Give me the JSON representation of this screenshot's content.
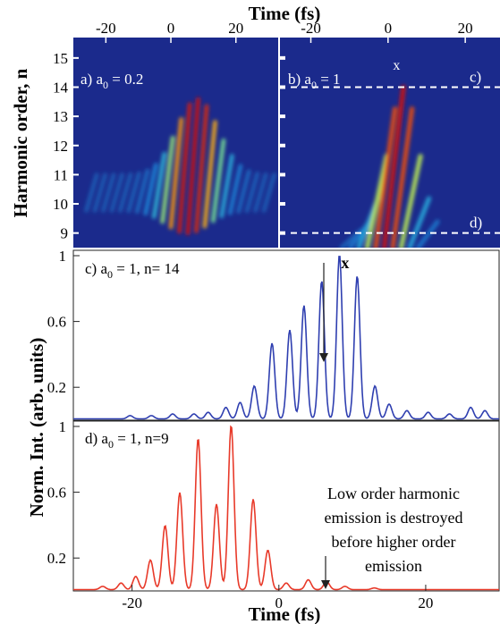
{
  "figure": {
    "top_axis_label": "Time (fs)",
    "bottom_axis_label": "Time (fs)",
    "left_top_label": "Harmonic order, n",
    "left_bottom_label": "Norm. Int. (arb. units)"
  },
  "colors": {
    "blue_curve": "#2f3fb0",
    "red_curve": "#e83a2a",
    "heatmap_bg": "#1b2a8c",
    "dashed": "#ffffff"
  },
  "chart_data": [
    {
      "type": "heatmap",
      "panel_label": "a) a₀ = 0.2",
      "label_prefix": "a) a",
      "label_sub": "0",
      "label_suffix": " = 0.2",
      "xlabel": "Time (fs)",
      "ylabel": "Harmonic order, n",
      "xlim": [
        -30,
        33
      ],
      "ylim": [
        8.5,
        15.7
      ],
      "x_ticks": [
        -20,
        0,
        20
      ],
      "y_ticks": [
        9,
        10,
        11,
        12,
        13,
        14,
        15
      ]
    },
    {
      "type": "heatmap",
      "panel_label": "b) a₀ = 1",
      "label_prefix": "b) a",
      "label_sub": "0",
      "label_suffix": " = 1",
      "xlim": [
        -28,
        29
      ],
      "ylim": [
        8.5,
        15.7
      ],
      "x_ticks": [
        -20,
        0,
        20
      ],
      "annotations": {
        "x_mark": "x",
        "line_c": "c)",
        "line_d": "d)"
      },
      "dashed_lines_n": [
        14,
        9
      ]
    },
    {
      "type": "line",
      "panel_label": "c) a₀ = 1, n= 14",
      "label_prefix": "c) a",
      "label_sub": "0",
      "label_suffix": " = 1, n= 14",
      "xlim": [
        -30,
        30
      ],
      "ylim": [
        0,
        1
      ],
      "y_ticks": [
        "0.2",
        "0.6",
        "1"
      ],
      "annotation": "x",
      "peaks": [
        {
          "x": -22,
          "y": 0.02
        },
        {
          "x": -19,
          "y": 0.02
        },
        {
          "x": -16,
          "y": 0.03
        },
        {
          "x": -13,
          "y": 0.03
        },
        {
          "x": -11,
          "y": 0.04
        },
        {
          "x": -8.5,
          "y": 0.07
        },
        {
          "x": -6.5,
          "y": 0.1
        },
        {
          "x": -4.5,
          "y": 0.2
        },
        {
          "x": -2,
          "y": 0.46
        },
        {
          "x": 0.5,
          "y": 0.54
        },
        {
          "x": 2.5,
          "y": 0.69
        },
        {
          "x": 5,
          "y": 0.84
        },
        {
          "x": 7.5,
          "y": 1.0
        },
        {
          "x": 10,
          "y": 0.87
        },
        {
          "x": 12.5,
          "y": 0.2
        },
        {
          "x": 14.5,
          "y": 0.09
        },
        {
          "x": 17,
          "y": 0.05
        },
        {
          "x": 20,
          "y": 0.04
        },
        {
          "x": 23,
          "y": 0.03
        },
        {
          "x": 26,
          "y": 0.07
        },
        {
          "x": 28,
          "y": 0.05
        }
      ]
    },
    {
      "type": "line",
      "panel_label": "d) a₀ = 1, n=9",
      "label_prefix": "d) a",
      "label_sub": "0",
      "label_suffix": " = 1, n=9",
      "xlim": [
        -28,
        30
      ],
      "ylim": [
        0,
        1
      ],
      "x_ticks": [
        -20,
        0,
        20
      ],
      "y_ticks": [
        "0.2",
        "0.6",
        "1"
      ],
      "xlabel": "Time (fs)",
      "annotation_lines": [
        "Low order harmonic",
        "emission is destroyed",
        "before higher order",
        "emission"
      ],
      "peaks": [
        {
          "x": -24,
          "y": 0.02
        },
        {
          "x": -21.5,
          "y": 0.04
        },
        {
          "x": -19.5,
          "y": 0.08
        },
        {
          "x": -17.5,
          "y": 0.18
        },
        {
          "x": -15.5,
          "y": 0.39
        },
        {
          "x": -13.5,
          "y": 0.59
        },
        {
          "x": -11,
          "y": 0.92
        },
        {
          "x": -8.5,
          "y": 0.52
        },
        {
          "x": -6.5,
          "y": 1.0
        },
        {
          "x": -3.5,
          "y": 0.55
        },
        {
          "x": -1.5,
          "y": 0.24
        },
        {
          "x": 1,
          "y": 0.04
        },
        {
          "x": 4,
          "y": 0.06
        },
        {
          "x": 6.5,
          "y": 0.05
        },
        {
          "x": 9,
          "y": 0.02
        },
        {
          "x": 13,
          "y": 0.01
        }
      ]
    }
  ]
}
